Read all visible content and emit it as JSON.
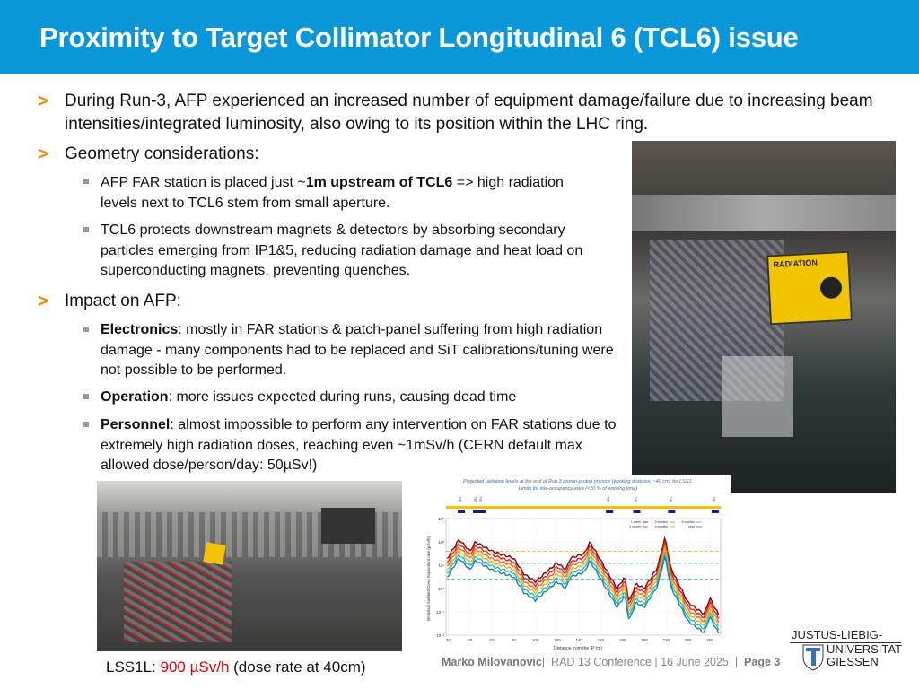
{
  "header": {
    "title": "Proximity to Target Collimator Longitudinal 6 (TCL6) issue"
  },
  "accent_color": "#0a97d9",
  "bullet_color": "#f08a00",
  "bullets": [
    {
      "marker": ">",
      "text": "During Run-3, AFP experienced an increased number of equipment damage/failure due to increasing beam intensities/integrated luminosity, also owing to its position within the LHC ring."
    },
    {
      "marker": ">",
      "text": "Geometry considerations:",
      "sub": [
        {
          "pre": "AFP FAR station is placed just ~",
          "bold": "1m upstream of TCL6",
          "post": " => high radiation levels next to TCL6 stem from small aperture."
        },
        {
          "pre": "TCL6 protects downstream magnets & detectors by absorbing secondary particles emerging from IP1&5, reducing radiation damage and heat load on superconducting magnets, preventing quenches.",
          "bold": "",
          "post": ""
        }
      ]
    },
    {
      "marker": ">",
      "text": "Impact on AFP:",
      "sub": [
        {
          "pre": "",
          "bold": "Electronics",
          "post": ": mostly in FAR stations & patch-panel suffering from high radiation damage - many components had to be replaced and SiT calibrations/tuning were not possible to be performed."
        },
        {
          "pre": "",
          "bold": "Operation",
          "post": ": more issues expected during runs, causing dead time"
        },
        {
          "pre": "",
          "bold": "Personnel",
          "post": ": almost impossible to perform any intervention on FAR stations due to extremely high radiation doses, reaching even ~1mSv/h (CERN default max allowed dose/person/day: 50µSv!)"
        }
      ]
    }
  ],
  "photo_sign": "RADIATION",
  "caption": {
    "pre": "LSS1L: ",
    "value": "900 µSv/h",
    "post": " (dose rate at 40cm)"
  },
  "chart_data": {
    "type": "line",
    "title": "Projected radiation levels at the end of Run 3 proton-proton physics (working distance, ~40 cm) for LSS1.",
    "subtitle": "Limits for low-occupancy area (<20 % of working time)",
    "xlabel": "Distance from the IP (m)",
    "ylabel": "Residual Ambient Dose Equivalent rate (µSv/h)",
    "xlim": [
      18,
      270
    ],
    "ylim": [
      0.01,
      1000
    ],
    "yscale": "log",
    "xticks": [
      "20",
      "40",
      "60",
      "80",
      "100",
      "120",
      "140",
      "160",
      "180",
      "200",
      "220",
      "240",
      "260"
    ],
    "yticks": [
      "10⁻²",
      "10⁻¹",
      "10⁰",
      "10¹",
      "10²",
      "10³"
    ],
    "markers": [
      "1R1",
      "2R1",
      "3R1",
      "4R1",
      "5R1",
      "6R1",
      "7R1"
    ],
    "series": [
      {
        "name": "1 week",
        "color": "#7a0000"
      },
      {
        "name": "1 month",
        "color": "#e02020"
      },
      {
        "name": "2 months",
        "color": "#f07020"
      },
      {
        "name": "4 months",
        "color": "#f0b020"
      },
      {
        "name": "6 months",
        "color": "#20c0c0"
      },
      {
        "name": "1 year",
        "color": "#2080a0"
      }
    ],
    "grid": true,
    "legend": "top-right"
  },
  "footer": {
    "author": "Marko Milovanovic",
    "sep1": "|",
    "conference": "RAD 13 Conference | 16 June 2025",
    "sep2": "|",
    "page": "Page 3"
  },
  "logo": {
    "line1": "JUSTUS-LIEBIG-",
    "line2": "UNIVERSITAT",
    "line3": "GIESSEN"
  }
}
